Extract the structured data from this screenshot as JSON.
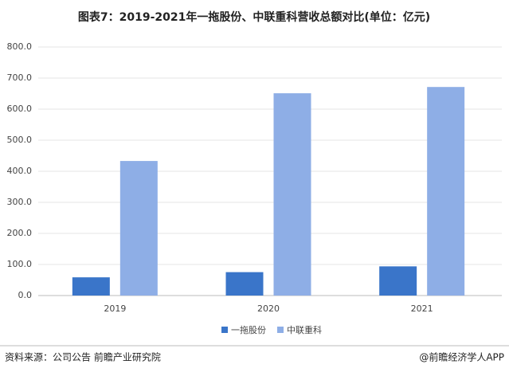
{
  "chart_data": {
    "type": "bar",
    "title": "图表7：2019-2021年一拖股份、中联重科营收总额对比(单位：亿元)",
    "categories": [
      "2019",
      "2020",
      "2021"
    ],
    "series": [
      {
        "name": "一拖股份",
        "color": "#3a75c9",
        "values": [
          58.6,
          75.3,
          93.9
        ]
      },
      {
        "name": "中联重科",
        "color": "#8eaee6",
        "values": [
          433.1,
          651.1,
          671.3
        ]
      }
    ],
    "ylim": [
      0,
      800
    ],
    "yticks": [
      {
        "value": 0,
        "label": "0.0"
      },
      {
        "value": 100,
        "label": "100.0"
      },
      {
        "value": 200,
        "label": "200.0"
      },
      {
        "value": 300,
        "label": "300.0"
      },
      {
        "value": 400,
        "label": "400.0"
      },
      {
        "value": 500,
        "label": "500.0"
      },
      {
        "value": 600,
        "label": "600.0"
      },
      {
        "value": 700,
        "label": "700.0"
      },
      {
        "value": 800,
        "label": "800.0"
      }
    ],
    "grid": true,
    "legend": "bottom",
    "source": "资料来源：公司公告 前瞻产业研究院",
    "credit": "@前瞻经济学人APP"
  }
}
